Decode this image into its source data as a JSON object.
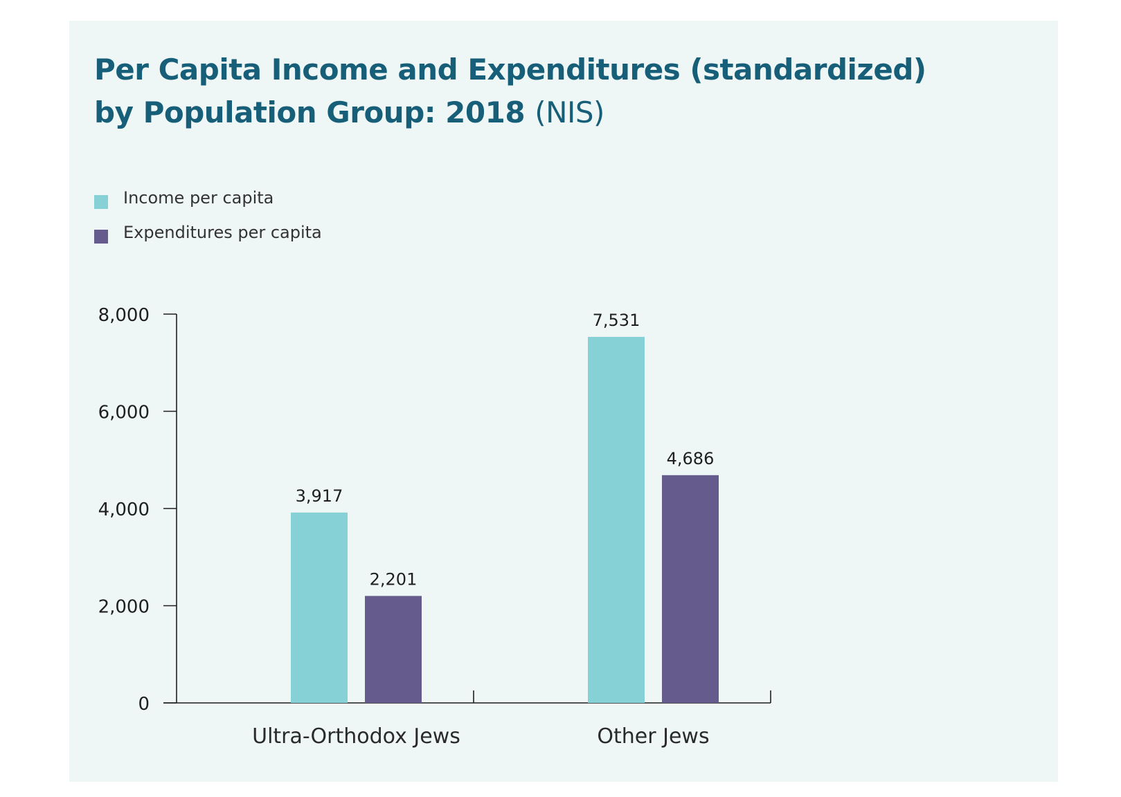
{
  "title": {
    "line1": "Per Capita Income and Expenditures (standardized)",
    "line2": "by Population Group: 2018",
    "unit": "(NIS)"
  },
  "colors": {
    "background": "#eef7f6",
    "title": "#175e79",
    "income": "#86d1d6",
    "expenditures": "#655b8c",
    "axis": "#1f1f1f"
  },
  "chart_data": {
    "type": "bar",
    "title": "Per Capita Income and Expenditures (standardized) by Population Group: 2018 (NIS)",
    "categories": [
      "Ultra-Orthodox Jews",
      "Other Jews"
    ],
    "series": [
      {
        "name": "Income per capita",
        "values": [
          3917,
          7531
        ],
        "color": "#86d1d6"
      },
      {
        "name": "Expenditures per capita",
        "values": [
          2201,
          4686
        ],
        "color": "#655b8c"
      }
    ],
    "data_labels": [
      [
        "3,917",
        "7,531"
      ],
      [
        "2,201",
        "4,686"
      ]
    ],
    "ylim": [
      0,
      8000
    ],
    "yticks": [
      0,
      2000,
      4000,
      6000,
      8000
    ],
    "ytick_labels": [
      "0",
      "2,000",
      "4,000",
      "6,000",
      "8,000"
    ],
    "xlabel": "",
    "ylabel": "",
    "grid": false,
    "legend_position": "top-left"
  }
}
